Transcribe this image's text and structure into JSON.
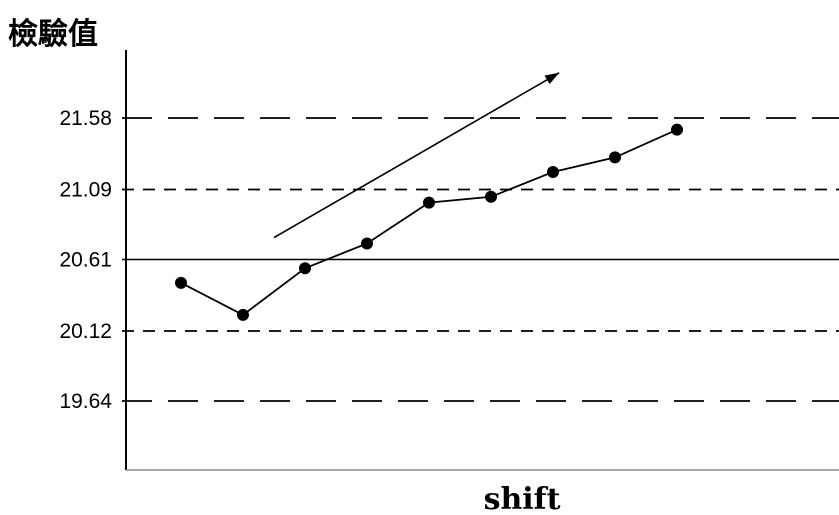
{
  "chart_data": {
    "type": "line",
    "ylabel": "檢驗值",
    "xlabel": "shift",
    "yticks": [
      "21.58",
      "21.09",
      "20.61",
      "20.12",
      "19.64"
    ],
    "ylim": [
      19.2,
      22.0
    ],
    "xlim": [
      0,
      11
    ],
    "grid": false,
    "reference_lines": [
      {
        "value": 21.58,
        "style": "long-dash"
      },
      {
        "value": 21.09,
        "style": "short-dash"
      },
      {
        "value": 20.61,
        "style": "solid"
      },
      {
        "value": 20.12,
        "style": "short-dash"
      },
      {
        "value": 19.64,
        "style": "long-dash"
      }
    ],
    "series": [
      {
        "x": [
          1,
          2,
          3,
          4,
          5,
          6,
          7,
          8,
          9
        ],
        "y": [
          20.45,
          20.23,
          20.55,
          20.72,
          21.0,
          21.04,
          21.21,
          21.31,
          21.5
        ],
        "markers": true
      }
    ],
    "trend_arrow": {
      "from": [
        2.5,
        20.76
      ],
      "to": [
        7.1,
        21.89
      ]
    }
  }
}
